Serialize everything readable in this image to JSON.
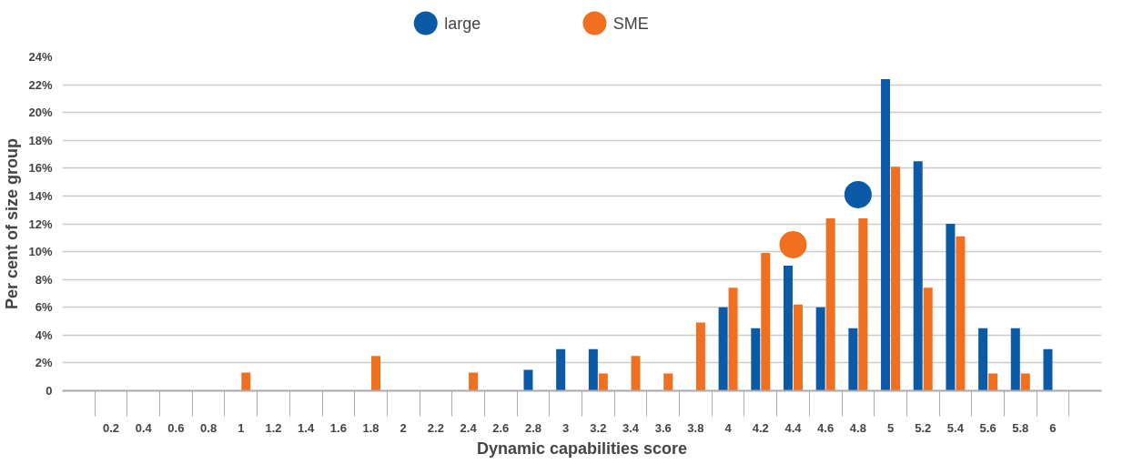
{
  "chart_data": {
    "type": "bar",
    "xlabel": "Dynamic capabilities score",
    "ylabel": "Per cent of size group",
    "categories": [
      null,
      "0.2",
      "0.4",
      "0.6",
      "0.8",
      "1",
      "1.2",
      "1.4",
      "1.6",
      "1.8",
      "2",
      "2.2",
      "2.4",
      "2.6",
      "2.8",
      "3",
      "3.2",
      "3.4",
      "3.6",
      "3.8",
      "4",
      "4.2",
      "4.4",
      "4.6",
      "4.8",
      "5",
      "5.2",
      "5.4",
      "5.6",
      "5.8",
      "6",
      null
    ],
    "series": [
      {
        "name": "large",
        "color": "#0a5aa8",
        "values": [
          null,
          null,
          null,
          null,
          null,
          null,
          null,
          null,
          null,
          null,
          null,
          null,
          null,
          null,
          1.5,
          3.0,
          3.0,
          null,
          null,
          null,
          6.0,
          4.5,
          9.0,
          6.0,
          4.5,
          22.4,
          16.5,
          12.0,
          4.5,
          4.5,
          3.0,
          null
        ]
      },
      {
        "name": "SME",
        "color": "#f07020",
        "values": [
          null,
          null,
          null,
          null,
          null,
          1.3,
          null,
          null,
          null,
          2.5,
          null,
          null,
          1.3,
          null,
          null,
          null,
          1.25,
          2.5,
          1.25,
          4.9,
          7.4,
          9.9,
          6.2,
          12.4,
          12.4,
          16.1,
          7.4,
          11.1,
          1.25,
          1.25,
          null,
          null
        ]
      },
      {
        "type": "scatter",
        "color": "#0a5aa8",
        "x": [
          "4.8"
        ],
        "values": [
          14.1
        ]
      },
      {
        "type": "scatter",
        "color": "#f07020",
        "x": [
          "4.4"
        ],
        "values": [
          10.5
        ]
      }
    ],
    "ylim": [
      0,
      24
    ],
    "yticks": [
      {
        "value": 0,
        "label": "0"
      },
      {
        "value": 2,
        "label": "2%"
      },
      {
        "value": 4,
        "label": "4%"
      },
      {
        "value": 6,
        "label": "6%"
      },
      {
        "value": 8,
        "label": "8%"
      },
      {
        "value": 10,
        "label": "10%"
      },
      {
        "value": 12,
        "label": "12%"
      },
      {
        "value": 14,
        "label": "14%"
      },
      {
        "value": 16,
        "label": "16%"
      },
      {
        "value": 18,
        "label": "18%"
      },
      {
        "value": 20,
        "label": "20%"
      },
      {
        "value": 22,
        "label": "22%"
      },
      {
        "value": 24,
        "label": "24%"
      }
    ],
    "grid": "y",
    "legend": "top",
    "marker": "circle"
  }
}
